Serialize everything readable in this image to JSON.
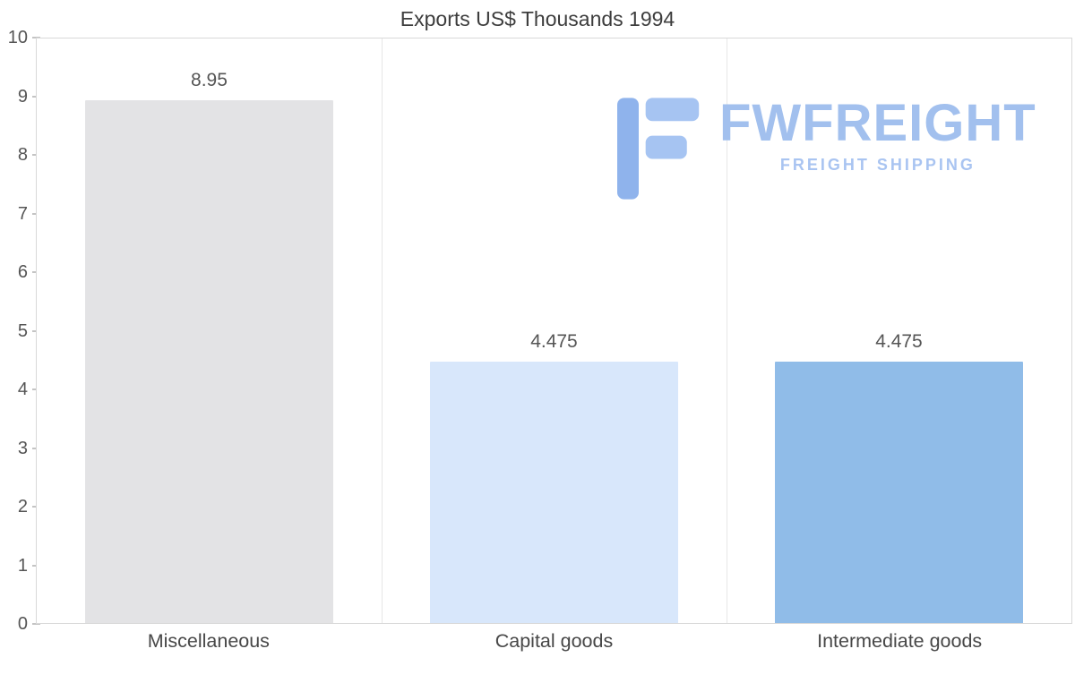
{
  "title": "Exports US$ Thousands 1994",
  "watermark": {
    "brand": "FWFREIGHT",
    "tagline": "FREIGHT SHIPPING",
    "icon": "stylized-f-logo",
    "brand_color": "#a2c0ee",
    "icon_color": "#8fb3ec"
  },
  "chart_data": {
    "type": "bar",
    "title": "Exports US$ Thousands 1994",
    "categories": [
      "Miscellaneous",
      "Capital goods",
      "Intermediate goods"
    ],
    "values": [
      8.95,
      4.475,
      4.475
    ],
    "value_labels": [
      "8.95",
      "4.475",
      "4.475"
    ],
    "bar_colors": [
      "#e3e3e5",
      "#d8e7fb",
      "#90bce8"
    ],
    "xlabel": "",
    "ylabel": "",
    "ylim": [
      0,
      10
    ],
    "yticks": [
      0,
      1,
      2,
      3,
      4,
      5,
      6,
      7,
      8,
      9,
      10
    ],
    "grid": "vertical category separators on, horizontal off",
    "legend": "none",
    "background": "#ffffff"
  }
}
